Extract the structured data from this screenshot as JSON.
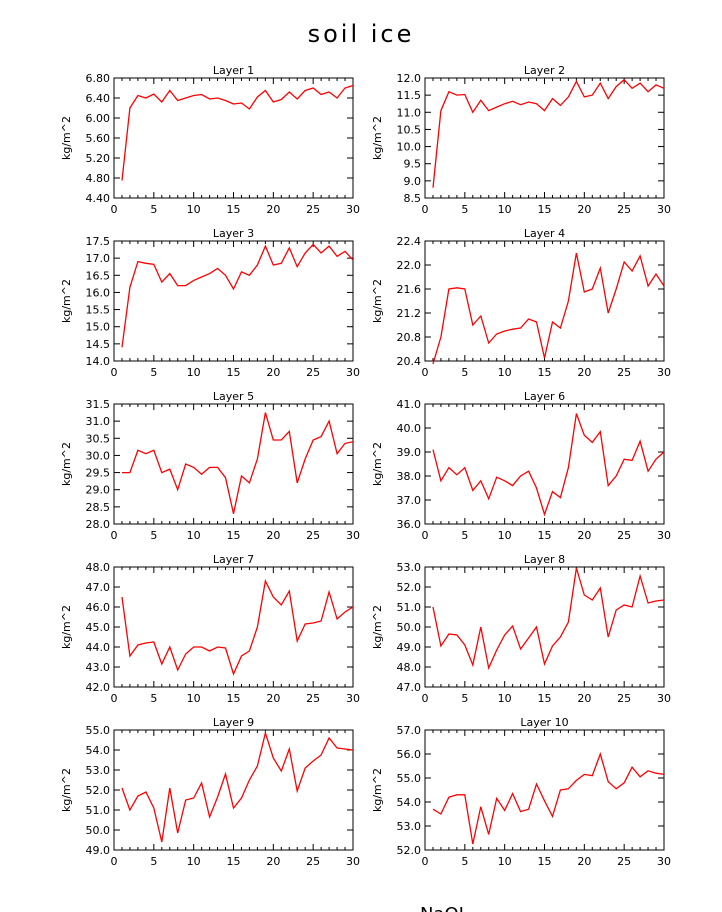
{
  "figure": {
    "title": "soil ice",
    "footer": "NaOL..."
  },
  "chart_data": [
    {
      "type": "line",
      "title": "Layer 1",
      "ylabel": "kg/m^2",
      "xlim": [
        0,
        30
      ],
      "xticks": [
        0,
        5,
        10,
        15,
        20,
        25,
        30
      ],
      "ylim": [
        4.4,
        6.8
      ],
      "yticks": [
        "4.40",
        "4.80",
        "5.20",
        "5.60",
        "6.00",
        "6.40",
        "6.80"
      ],
      "color": "#ff0000",
      "x": [
        1,
        2,
        3,
        4,
        5,
        6,
        7,
        8,
        9,
        10,
        11,
        12,
        13,
        14,
        15,
        16,
        17,
        18,
        19,
        20,
        21,
        22,
        23,
        24,
        25,
        26,
        27,
        28,
        29,
        30
      ],
      "values": [
        4.75,
        6.2,
        6.45,
        6.4,
        6.48,
        6.32,
        6.55,
        6.35,
        6.4,
        6.45,
        6.47,
        6.38,
        6.4,
        6.35,
        6.28,
        6.3,
        6.18,
        6.42,
        6.55,
        6.32,
        6.37,
        6.52,
        6.38,
        6.55,
        6.6,
        6.47,
        6.52,
        6.4,
        6.6,
        6.65
      ]
    },
    {
      "type": "line",
      "title": "Layer 2",
      "ylabel": "kg/m^2",
      "xlim": [
        0,
        30
      ],
      "xticks": [
        0,
        5,
        10,
        15,
        20,
        25,
        30
      ],
      "ylim": [
        8.5,
        12.0
      ],
      "yticks": [
        "8.5",
        "9.0",
        "9.5",
        "10.0",
        "10.5",
        "11.0",
        "11.5",
        "12.0"
      ],
      "color": "#ff0000",
      "x": [
        1,
        2,
        3,
        4,
        5,
        6,
        7,
        8,
        9,
        10,
        11,
        12,
        13,
        14,
        15,
        16,
        17,
        18,
        19,
        20,
        21,
        22,
        23,
        24,
        25,
        26,
        27,
        28,
        29,
        30
      ],
      "values": [
        8.8,
        11.05,
        11.6,
        11.5,
        11.52,
        11.0,
        11.35,
        11.05,
        11.15,
        11.25,
        11.32,
        11.22,
        11.3,
        11.25,
        11.05,
        11.4,
        11.2,
        11.45,
        11.9,
        11.45,
        11.5,
        11.85,
        11.4,
        11.75,
        11.95,
        11.7,
        11.85,
        11.6,
        11.8,
        11.7
      ]
    },
    {
      "type": "line",
      "title": "Layer 3",
      "ylabel": "kg/m^2",
      "xlim": [
        0,
        30
      ],
      "xticks": [
        0,
        5,
        10,
        15,
        20,
        25,
        30
      ],
      "ylim": [
        14.0,
        17.5
      ],
      "yticks": [
        "14.0",
        "14.5",
        "15.0",
        "15.5",
        "16.0",
        "16.5",
        "17.0",
        "17.5"
      ],
      "color": "#ff0000",
      "x": [
        1,
        2,
        3,
        4,
        5,
        6,
        7,
        8,
        9,
        10,
        11,
        12,
        13,
        14,
        15,
        16,
        17,
        18,
        19,
        20,
        21,
        22,
        23,
        24,
        25,
        26,
        27,
        28,
        29,
        30
      ],
      "values": [
        14.4,
        16.15,
        16.9,
        16.85,
        16.82,
        16.3,
        16.55,
        16.2,
        16.2,
        16.35,
        16.45,
        16.55,
        16.7,
        16.5,
        16.1,
        16.6,
        16.5,
        16.8,
        17.35,
        16.8,
        16.85,
        17.3,
        16.75,
        17.15,
        17.4,
        17.15,
        17.35,
        17.05,
        17.2,
        16.95
      ]
    },
    {
      "type": "line",
      "title": "Layer 4",
      "ylabel": "kg/m^2",
      "xlim": [
        0,
        30
      ],
      "xticks": [
        0,
        5,
        10,
        15,
        20,
        25,
        30
      ],
      "ylim": [
        20.4,
        22.4
      ],
      "yticks": [
        "20.4",
        "20.8",
        "21.2",
        "21.6",
        "22.0",
        "22.4"
      ],
      "color": "#ff0000",
      "x": [
        1,
        2,
        3,
        4,
        5,
        6,
        7,
        8,
        9,
        10,
        11,
        12,
        13,
        14,
        15,
        16,
        17,
        18,
        19,
        20,
        21,
        22,
        23,
        24,
        25,
        26,
        27,
        28,
        29,
        30
      ],
      "values": [
        20.35,
        20.8,
        21.6,
        21.62,
        21.6,
        21.0,
        21.15,
        20.7,
        20.85,
        20.9,
        20.93,
        20.95,
        21.1,
        21.05,
        20.45,
        21.05,
        20.95,
        21.4,
        22.2,
        21.55,
        21.6,
        21.95,
        21.2,
        21.6,
        22.05,
        21.9,
        22.15,
        21.65,
        21.85,
        21.65
      ]
    },
    {
      "type": "line",
      "title": "Layer 5",
      "ylabel": "kg/m^2",
      "xlim": [
        0,
        30
      ],
      "xticks": [
        0,
        5,
        10,
        15,
        20,
        25,
        30
      ],
      "ylim": [
        28.0,
        31.5
      ],
      "yticks": [
        "28.0",
        "28.5",
        "29.0",
        "29.5",
        "30.0",
        "30.5",
        "31.0",
        "31.5"
      ],
      "color": "#ff0000",
      "x": [
        1,
        2,
        3,
        4,
        5,
        6,
        7,
        8,
        9,
        10,
        11,
        12,
        13,
        14,
        15,
        16,
        17,
        18,
        19,
        20,
        21,
        22,
        23,
        24,
        25,
        26,
        27,
        28,
        29,
        30
      ],
      "values": [
        29.5,
        29.5,
        30.15,
        30.05,
        30.15,
        29.5,
        29.6,
        29.0,
        29.75,
        29.65,
        29.45,
        29.65,
        29.65,
        29.35,
        28.3,
        29.4,
        29.2,
        29.9,
        31.25,
        30.45,
        30.45,
        30.7,
        29.2,
        29.9,
        30.45,
        30.55,
        31.0,
        30.05,
        30.35,
        30.4
      ]
    },
    {
      "type": "line",
      "title": "Layer 6",
      "ylabel": "kg/m^2",
      "xlim": [
        0,
        30
      ],
      "xticks": [
        0,
        5,
        10,
        15,
        20,
        25,
        30
      ],
      "ylim": [
        36.0,
        41.0
      ],
      "yticks": [
        "36.0",
        "37.0",
        "38.0",
        "39.0",
        "40.0",
        "41.0"
      ],
      "color": "#ff0000",
      "x": [
        1,
        2,
        3,
        4,
        5,
        6,
        7,
        8,
        9,
        10,
        11,
        12,
        13,
        14,
        15,
        16,
        17,
        18,
        19,
        20,
        21,
        22,
        23,
        24,
        25,
        26,
        27,
        28,
        29,
        30
      ],
      "values": [
        39.1,
        37.8,
        38.35,
        38.05,
        38.35,
        37.4,
        37.8,
        37.05,
        37.95,
        37.8,
        37.6,
        38.0,
        38.2,
        37.5,
        36.4,
        37.35,
        37.1,
        38.35,
        40.6,
        39.7,
        39.4,
        39.85,
        37.6,
        38.0,
        38.7,
        38.65,
        39.45,
        38.2,
        38.7,
        39.0
      ]
    },
    {
      "type": "line",
      "title": "Layer 7",
      "ylabel": "kg/m^2",
      "xlim": [
        0,
        30
      ],
      "xticks": [
        0,
        5,
        10,
        15,
        20,
        25,
        30
      ],
      "ylim": [
        42.0,
        48.0
      ],
      "yticks": [
        "42.0",
        "43.0",
        "44.0",
        "45.0",
        "46.0",
        "47.0",
        "48.0"
      ],
      "color": "#ff0000",
      "x": [
        1,
        2,
        3,
        4,
        5,
        6,
        7,
        8,
        9,
        10,
        11,
        12,
        13,
        14,
        15,
        16,
        17,
        18,
        19,
        20,
        21,
        22,
        23,
        24,
        25,
        26,
        27,
        28,
        29,
        30
      ],
      "values": [
        46.5,
        43.55,
        44.1,
        44.2,
        44.25,
        43.15,
        44.0,
        42.85,
        43.65,
        44.0,
        44.0,
        43.8,
        44.0,
        43.95,
        42.65,
        43.55,
        43.8,
        45.0,
        47.3,
        46.5,
        46.1,
        46.8,
        44.3,
        45.15,
        45.2,
        45.3,
        46.75,
        45.4,
        45.75,
        46.0
      ]
    },
    {
      "type": "line",
      "title": "Layer 8",
      "ylabel": "kg/m^2",
      "xlim": [
        0,
        30
      ],
      "xticks": [
        0,
        5,
        10,
        15,
        20,
        25,
        30
      ],
      "ylim": [
        47.0,
        53.0
      ],
      "yticks": [
        "47.0",
        "48.0",
        "49.0",
        "50.0",
        "51.0",
        "52.0",
        "53.0"
      ],
      "color": "#ff0000",
      "x": [
        1,
        2,
        3,
        4,
        5,
        6,
        7,
        8,
        9,
        10,
        11,
        12,
        13,
        14,
        15,
        16,
        17,
        18,
        19,
        20,
        21,
        22,
        23,
        24,
        25,
        26,
        27,
        28,
        29,
        30
      ],
      "values": [
        51.0,
        49.05,
        49.65,
        49.6,
        49.1,
        48.1,
        50.0,
        47.95,
        48.85,
        49.6,
        50.05,
        48.9,
        49.45,
        50.0,
        48.15,
        49.05,
        49.5,
        50.25,
        52.95,
        51.6,
        51.35,
        51.95,
        49.5,
        50.85,
        51.1,
        51.0,
        52.55,
        51.2,
        51.3,
        51.35
      ]
    },
    {
      "type": "line",
      "title": "Layer 9",
      "ylabel": "kg/m^2",
      "xlim": [
        0,
        30
      ],
      "xticks": [
        0,
        5,
        10,
        15,
        20,
        25,
        30
      ],
      "ylim": [
        49.0,
        55.0
      ],
      "yticks": [
        "49.0",
        "50.0",
        "51.0",
        "52.0",
        "53.0",
        "54.0",
        "55.0"
      ],
      "color": "#ff0000",
      "x": [
        1,
        2,
        3,
        4,
        5,
        6,
        7,
        8,
        9,
        10,
        11,
        12,
        13,
        14,
        15,
        16,
        17,
        18,
        19,
        20,
        21,
        22,
        23,
        24,
        25,
        26,
        27,
        28,
        29,
        30
      ],
      "values": [
        52.1,
        51.0,
        51.7,
        51.9,
        51.1,
        49.4,
        52.1,
        49.85,
        51.5,
        51.6,
        52.35,
        50.65,
        51.65,
        52.8,
        51.1,
        51.6,
        52.5,
        53.2,
        54.85,
        53.6,
        52.95,
        54.05,
        51.95,
        53.1,
        53.45,
        53.75,
        54.6,
        54.1,
        54.05,
        54.0
      ]
    },
    {
      "type": "line",
      "title": "Layer 10",
      "ylabel": "kg/m^2",
      "xlim": [
        0,
        30
      ],
      "xticks": [
        0,
        5,
        10,
        15,
        20,
        25,
        30
      ],
      "ylim": [
        52.0,
        57.0
      ],
      "yticks": [
        "52.0",
        "53.0",
        "54.0",
        "55.0",
        "56.0",
        "57.0"
      ],
      "color": "#ff0000",
      "x": [
        1,
        2,
        3,
        4,
        5,
        6,
        7,
        8,
        9,
        10,
        11,
        12,
        13,
        14,
        15,
        16,
        17,
        18,
        19,
        20,
        21,
        22,
        23,
        24,
        25,
        26,
        27,
        28,
        29,
        30
      ],
      "values": [
        53.7,
        53.5,
        54.2,
        54.3,
        54.3,
        52.25,
        53.8,
        52.65,
        54.15,
        53.65,
        54.35,
        53.6,
        53.7,
        54.75,
        54.05,
        53.4,
        54.5,
        54.55,
        54.9,
        55.15,
        55.1,
        56.0,
        54.85,
        54.55,
        54.8,
        55.45,
        55.05,
        55.3,
        55.2,
        55.15
      ]
    }
  ]
}
